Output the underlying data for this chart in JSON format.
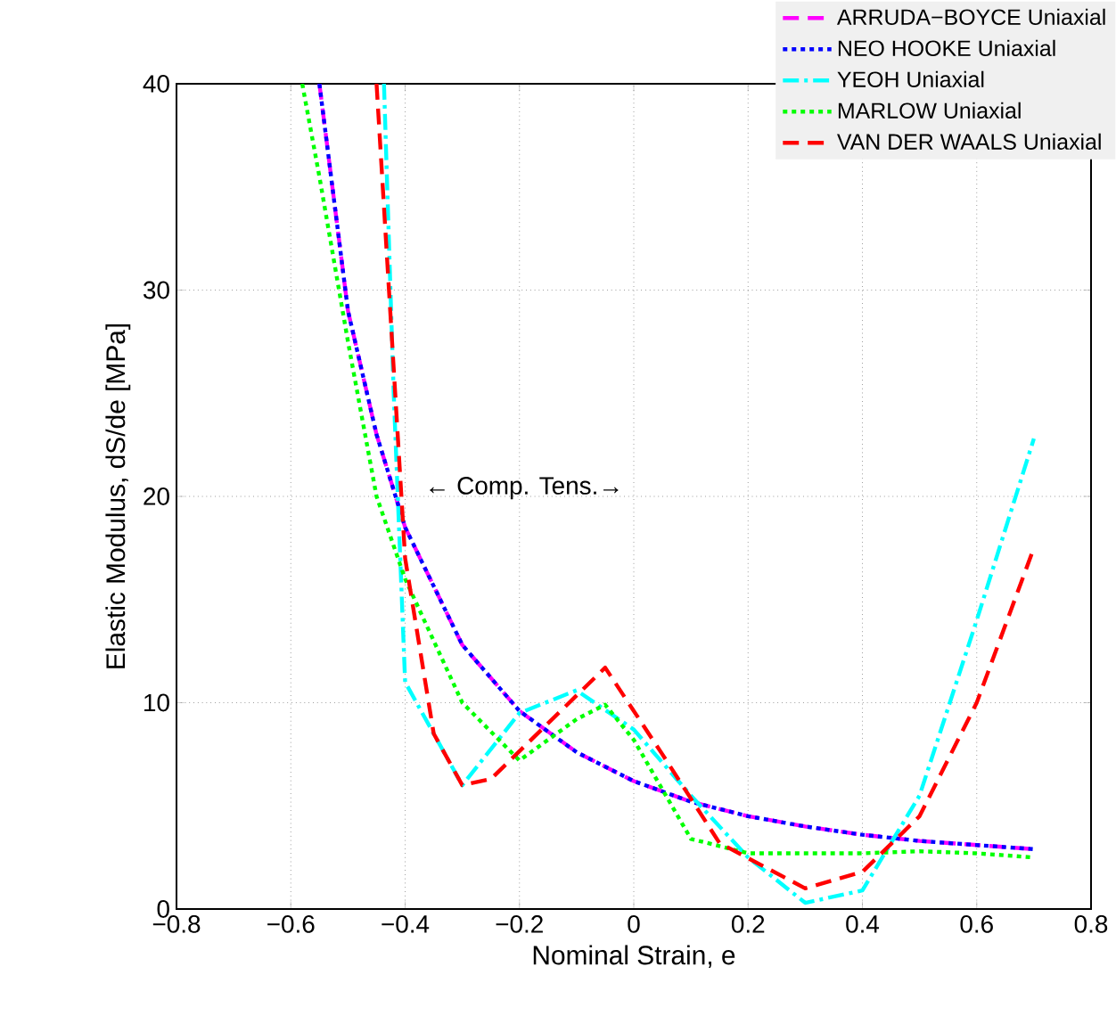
{
  "chart_data": {
    "type": "line",
    "xlabel": "Nominal Strain, e",
    "ylabel": "Elastic Modulus, dS/de [MPa]",
    "xlim": [
      -0.8,
      0.8
    ],
    "xticks": [
      {
        "value": -0.8,
        "label": "−0.8"
      },
      {
        "value": -0.6,
        "label": "−0.6"
      },
      {
        "value": -0.4,
        "label": "−0.4"
      },
      {
        "value": -0.2,
        "label": "−0.2"
      },
      0,
      0.2,
      0.4,
      0.6,
      0.8
    ],
    "ylim": [
      0,
      40
    ],
    "yticks": [
      0,
      10,
      20,
      30,
      40
    ],
    "grid": true,
    "legend": "top right",
    "marker": "none",
    "annotations": [
      "← Comp.  Tens.→"
    ],
    "series": [
      {
        "name": "ARRUDA−BOYCE Uniaxial",
        "color": "#ff00ff",
        "line_style": "dashed",
        "x": [
          -0.55,
          -0.5,
          -0.45,
          -0.4,
          -0.3,
          -0.2,
          -0.1,
          0,
          0.1,
          0.2,
          0.3,
          0.4,
          0.5,
          0.6,
          0.7
        ],
        "values": [
          40,
          29,
          23,
          18.5,
          12.8,
          9.6,
          7.6,
          6.2,
          5.2,
          4.5,
          4.0,
          3.6,
          3.3,
          3.1,
          2.9
        ]
      },
      {
        "name": "NEO HOOKE Uniaxial",
        "color": "#0000ff",
        "line_style": "dotted",
        "x": [
          -0.55,
          -0.5,
          -0.45,
          -0.4,
          -0.3,
          -0.2,
          -0.1,
          0,
          0.1,
          0.2,
          0.3,
          0.4,
          0.5,
          0.6,
          0.7
        ],
        "values": [
          40,
          29,
          23,
          18.5,
          12.8,
          9.6,
          7.6,
          6.2,
          5.2,
          4.5,
          4.0,
          3.6,
          3.3,
          3.1,
          2.9
        ]
      },
      {
        "name": "YEOH Uniaxial",
        "color": "#00ffff",
        "line_style": "dashdot",
        "x": [
          -0.437,
          -0.42,
          -0.4,
          -0.3,
          -0.2,
          -0.1,
          0,
          0.1,
          0.2,
          0.3,
          0.4,
          0.5,
          0.6,
          0.7
        ],
        "values": [
          40,
          25,
          11,
          6,
          9.5,
          10.6,
          8.7,
          5.5,
          2.5,
          0.3,
          0.9,
          5.5,
          14,
          22.8
        ]
      },
      {
        "name": "MARLOW Uniaxial",
        "color": "#00ff00",
        "line_style": "dotted",
        "x": [
          -0.58,
          -0.55,
          -0.5,
          -0.45,
          -0.4,
          -0.3,
          -0.2,
          -0.1,
          -0.05,
          0,
          0.1,
          0.2,
          0.3,
          0.4,
          0.5,
          0.6,
          0.7
        ],
        "values": [
          40,
          35.5,
          27.5,
          20,
          16,
          10,
          7.2,
          9.2,
          9.9,
          8.2,
          3.4,
          2.7,
          2.7,
          2.7,
          2.8,
          2.7,
          2.5
        ]
      },
      {
        "name": "VAN DER WAALS Uniaxial",
        "color": "#ff0000",
        "line_style": "dashed",
        "x": [
          -0.45,
          -0.4,
          -0.35,
          -0.3,
          -0.25,
          -0.05,
          0.05,
          0.15,
          0.3,
          0.4,
          0.5,
          0.6,
          0.7
        ],
        "values": [
          40,
          17,
          8.5,
          6,
          6.3,
          11.7,
          7.5,
          3.2,
          1.0,
          1.8,
          4.5,
          10,
          17.5
        ]
      }
    ]
  }
}
